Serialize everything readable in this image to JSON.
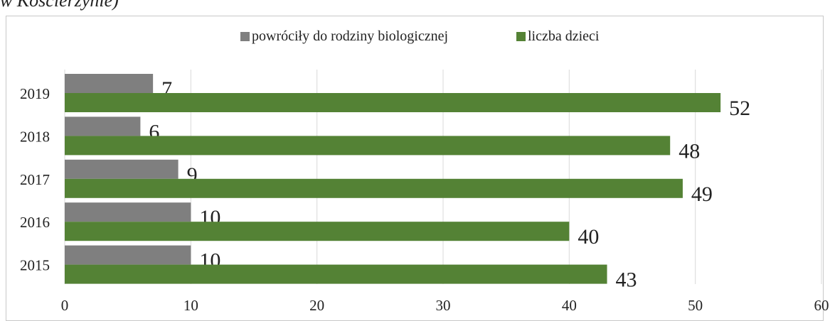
{
  "caption": "w Koscierzynie)",
  "chart_data": {
    "type": "bar",
    "orientation": "horizontal",
    "categories": [
      "2019",
      "2018",
      "2017",
      "2016",
      "2015"
    ],
    "series": [
      {
        "name": "powróciły do rodziny biologicznej",
        "color": "#7f7f7f",
        "values": [
          7,
          6,
          9,
          10,
          10
        ]
      },
      {
        "name": "liczba dzieci",
        "color": "#548235",
        "values": [
          52,
          48,
          49,
          40,
          43
        ]
      }
    ],
    "xlim": [
      0,
      60
    ],
    "xticks": [
      0,
      10,
      20,
      30,
      40,
      50,
      60
    ],
    "grid": true,
    "legend_position": "top",
    "title": "",
    "xlabel": "",
    "ylabel": ""
  }
}
